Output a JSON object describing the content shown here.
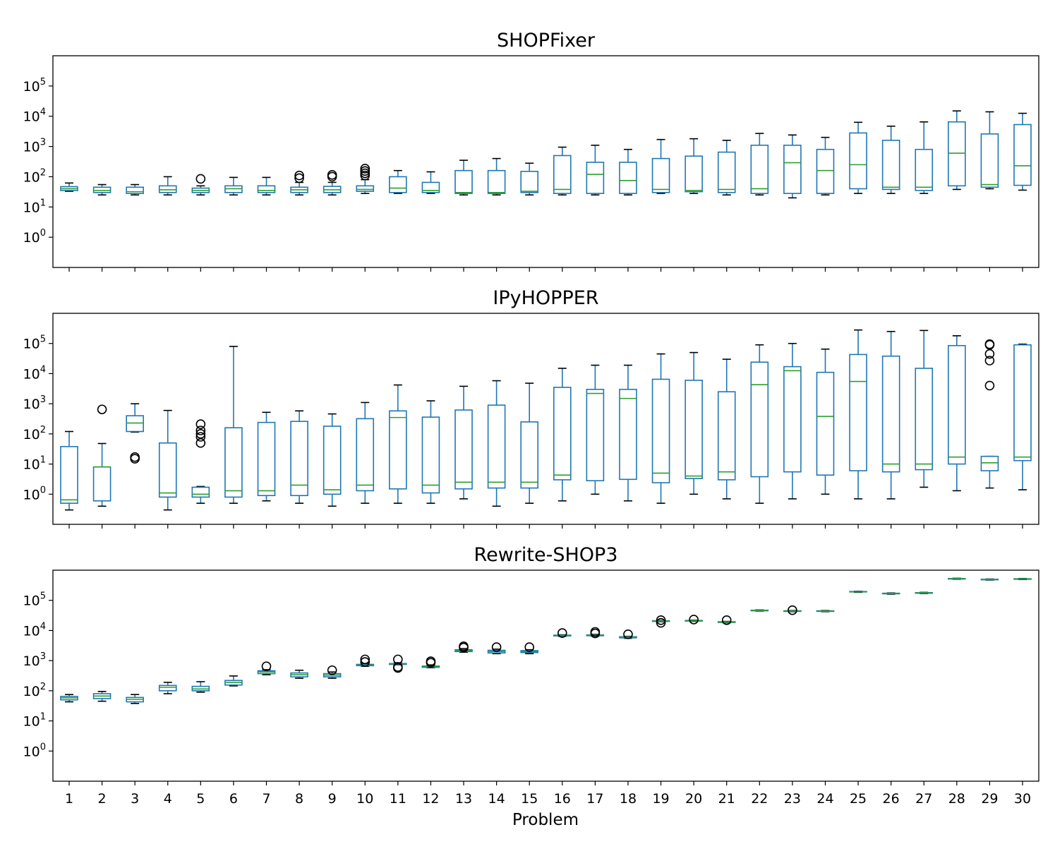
{
  "chart_data": {
    "type": "box",
    "xlabel": "Problem",
    "categories": [
      "1",
      "2",
      "3",
      "4",
      "5",
      "6",
      "7",
      "8",
      "9",
      "10",
      "11",
      "12",
      "13",
      "14",
      "15",
      "16",
      "17",
      "18",
      "19",
      "20",
      "21",
      "22",
      "23",
      "24",
      "25",
      "26",
      "27",
      "28",
      "29",
      "30"
    ],
    "yscale": "log",
    "ylim": [
      0.1,
      1000000
    ],
    "ytick_labels": [
      "10^0",
      "10^1",
      "10^2",
      "10^3",
      "10^4",
      "10^5"
    ],
    "grid": false,
    "colors": {
      "box": "#1f77b4",
      "median": "#2ca02c",
      "whisker": "#1f77b4",
      "cap": "#000000",
      "flier": "#000000"
    },
    "panels": [
      {
        "title": "SHOPFixer",
        "boxes": [
          {
            "whislo": 33,
            "q1": 35,
            "med": 40,
            "q3": 47,
            "whishi": 62,
            "fliers": []
          },
          {
            "whislo": 25,
            "q1": 30,
            "med": 35,
            "q3": 45,
            "whishi": 55,
            "fliers": []
          },
          {
            "whislo": 25,
            "q1": 28,
            "med": 32,
            "q3": 45,
            "whishi": 55,
            "fliers": []
          },
          {
            "whislo": 25,
            "q1": 30,
            "med": 37,
            "q3": 50,
            "whishi": 100,
            "fliers": []
          },
          {
            "whislo": 25,
            "q1": 30,
            "med": 35,
            "q3": 42,
            "whishi": 50,
            "fliers": [
              85
            ]
          },
          {
            "whislo": 25,
            "q1": 30,
            "med": 40,
            "q3": 50,
            "whishi": 95,
            "fliers": []
          },
          {
            "whislo": 25,
            "q1": 30,
            "med": 35,
            "q3": 50,
            "whishi": 95,
            "fliers": []
          },
          {
            "whislo": 25,
            "q1": 30,
            "med": 37,
            "q3": 45,
            "whishi": 65,
            "fliers": [
              90,
              110
            ]
          },
          {
            "whislo": 25,
            "q1": 30,
            "med": 37,
            "q3": 48,
            "whishi": 65,
            "fliers": [
              100,
              115
            ]
          },
          {
            "whislo": 28,
            "q1": 33,
            "med": 38,
            "q3": 50,
            "whishi": 80,
            "fliers": [
              110,
              130,
              155,
              185
            ]
          },
          {
            "whislo": 28,
            "q1": 30,
            "med": 42,
            "q3": 100,
            "whishi": 160,
            "fliers": []
          },
          {
            "whislo": 28,
            "q1": 30,
            "med": 35,
            "q3": 65,
            "whishi": 145,
            "fliers": []
          },
          {
            "whislo": 25,
            "q1": 28,
            "med": 30,
            "q3": 160,
            "whishi": 350,
            "fliers": []
          },
          {
            "whislo": 25,
            "q1": 28,
            "med": 30,
            "q3": 160,
            "whishi": 400,
            "fliers": []
          },
          {
            "whislo": 25,
            "q1": 30,
            "med": 33,
            "q3": 150,
            "whishi": 280,
            "fliers": []
          },
          {
            "whislo": 25,
            "q1": 28,
            "med": 38,
            "q3": 500,
            "whishi": 950,
            "fliers": []
          },
          {
            "whislo": 25,
            "q1": 28,
            "med": 120,
            "q3": 300,
            "whishi": 1100,
            "fliers": []
          },
          {
            "whislo": 25,
            "q1": 28,
            "med": 75,
            "q3": 300,
            "whishi": 800,
            "fliers": []
          },
          {
            "whislo": 28,
            "q1": 30,
            "med": 38,
            "q3": 400,
            "whishi": 1700,
            "fliers": []
          },
          {
            "whislo": 28,
            "q1": 32,
            "med": 35,
            "q3": 480,
            "whishi": 1800,
            "fliers": []
          },
          {
            "whislo": 25,
            "q1": 30,
            "med": 38,
            "q3": 650,
            "whishi": 1600,
            "fliers": []
          },
          {
            "whislo": 25,
            "q1": 28,
            "med": 40,
            "q3": 1100,
            "whishi": 2700,
            "fliers": []
          },
          {
            "whislo": 20,
            "q1": 28,
            "med": 290,
            "q3": 1100,
            "whishi": 2400,
            "fliers": []
          },
          {
            "whislo": 25,
            "q1": 28,
            "med": 160,
            "q3": 800,
            "whishi": 2000,
            "fliers": []
          },
          {
            "whislo": 28,
            "q1": 40,
            "med": 250,
            "q3": 2800,
            "whishi": 6300,
            "fliers": []
          },
          {
            "whislo": 28,
            "q1": 38,
            "med": 45,
            "q3": 1600,
            "whishi": 4700,
            "fliers": []
          },
          {
            "whislo": 28,
            "q1": 35,
            "med": 45,
            "q3": 800,
            "whishi": 6500,
            "fliers": []
          },
          {
            "whislo": 38,
            "q1": 50,
            "med": 600,
            "q3": 6500,
            "whishi": 15000,
            "fliers": []
          },
          {
            "whislo": 40,
            "q1": 45,
            "med": 55,
            "q3": 2600,
            "whishi": 14000,
            "fliers": []
          },
          {
            "whislo": 36,
            "q1": 52,
            "med": 230,
            "q3": 5300,
            "whishi": 12500,
            "fliers": []
          }
        ]
      },
      {
        "title": "IPyHOPPER",
        "boxes": [
          {
            "whislo": 0.3,
            "q1": 0.5,
            "med": 0.65,
            "q3": 38,
            "whishi": 120,
            "fliers": []
          },
          {
            "whislo": 0.4,
            "q1": 0.6,
            "med": 8,
            "q3": 8,
            "whishi": 48,
            "fliers": [
              650
            ]
          },
          {
            "whislo": 115,
            "q1": 120,
            "med": 230,
            "q3": 400,
            "whishi": 1000,
            "fliers": [
              15,
              17
            ]
          },
          {
            "whislo": 0.3,
            "q1": 0.8,
            "med": 1.1,
            "q3": 50,
            "whishi": 600,
            "fliers": []
          },
          {
            "whislo": 0.5,
            "q1": 0.8,
            "med": 1.0,
            "q3": 1.7,
            "whishi": 1.8,
            "fliers": [
              50,
              80,
              100,
              130,
              210
            ]
          },
          {
            "whislo": 0.5,
            "q1": 0.8,
            "med": 1.3,
            "q3": 160,
            "whishi": 80000,
            "fliers": []
          },
          {
            "whislo": 0.6,
            "q1": 0.9,
            "med": 1.3,
            "q3": 240,
            "whishi": 520,
            "fliers": []
          },
          {
            "whislo": 0.5,
            "q1": 0.9,
            "med": 2.0,
            "q3": 260,
            "whishi": 580,
            "fliers": []
          },
          {
            "whislo": 0.4,
            "q1": 1.0,
            "med": 1.4,
            "q3": 180,
            "whishi": 460,
            "fliers": []
          },
          {
            "whislo": 0.5,
            "q1": 1.3,
            "med": 2.0,
            "q3": 320,
            "whishi": 1100,
            "fliers": []
          },
          {
            "whislo": 0.5,
            "q1": 1.5,
            "med": 350,
            "q3": 580,
            "whishi": 4200,
            "fliers": []
          },
          {
            "whislo": 0.5,
            "q1": 1.1,
            "med": 2.0,
            "q3": 360,
            "whishi": 1250,
            "fliers": []
          },
          {
            "whislo": 0.7,
            "q1": 1.5,
            "med": 2.5,
            "q3": 620,
            "whishi": 3800,
            "fliers": []
          },
          {
            "whislo": 0.4,
            "q1": 1.6,
            "med": 2.5,
            "q3": 900,
            "whishi": 5800,
            "fliers": []
          },
          {
            "whislo": 0.5,
            "q1": 1.6,
            "med": 2.5,
            "q3": 250,
            "whishi": 4800,
            "fliers": []
          },
          {
            "whislo": 0.6,
            "q1": 3.0,
            "med": 4.3,
            "q3": 3500,
            "whishi": 15000,
            "fliers": []
          },
          {
            "whislo": 1.0,
            "q1": 2.8,
            "med": 2200,
            "q3": 3000,
            "whishi": 19000,
            "fliers": []
          },
          {
            "whislo": 0.6,
            "q1": 3.1,
            "med": 1500,
            "q3": 3000,
            "whishi": 19000,
            "fliers": []
          },
          {
            "whislo": 0.5,
            "q1": 2.4,
            "med": 5.0,
            "q3": 6500,
            "whishi": 45000,
            "fliers": []
          },
          {
            "whislo": 1.0,
            "q1": 3.3,
            "med": 4.0,
            "q3": 6000,
            "whishi": 50000,
            "fliers": []
          },
          {
            "whislo": 0.7,
            "q1": 3.0,
            "med": 5.5,
            "q3": 2500,
            "whishi": 30000,
            "fliers": []
          },
          {
            "whislo": 0.5,
            "q1": 3.8,
            "med": 4300,
            "q3": 24000,
            "whishi": 90000,
            "fliers": []
          },
          {
            "whislo": 0.7,
            "q1": 5.5,
            "med": 12500,
            "q3": 17000,
            "whishi": 100000,
            "fliers": []
          },
          {
            "whislo": 1.0,
            "q1": 4.3,
            "med": 380,
            "q3": 11000,
            "whishi": 65000,
            "fliers": []
          },
          {
            "whislo": 0.7,
            "q1": 6.0,
            "med": 5500,
            "q3": 43000,
            "whishi": 280000,
            "fliers": []
          },
          {
            "whislo": 0.7,
            "q1": 5.5,
            "med": 10,
            "q3": 38000,
            "whishi": 250000,
            "fliers": []
          },
          {
            "whislo": 1.7,
            "q1": 6.5,
            "med": 10,
            "q3": 15000,
            "whishi": 270000,
            "fliers": []
          },
          {
            "whislo": 1.3,
            "q1": 10,
            "med": 17,
            "q3": 85000,
            "whishi": 180000,
            "fliers": []
          },
          {
            "whislo": 1.6,
            "q1": 6.0,
            "med": 11,
            "q3": 18,
            "whishi": 18,
            "fliers": [
              4000,
              27000,
              45000,
              90000,
              95000
            ]
          },
          {
            "whislo": 1.4,
            "q1": 13,
            "med": 17,
            "q3": 90000,
            "whishi": 95000,
            "fliers": []
          }
        ]
      },
      {
        "title": "Rewrite-SHOP3",
        "boxes": [
          {
            "whislo": 43,
            "q1": 50,
            "med": 58,
            "q3": 65,
            "whishi": 75,
            "fliers": []
          },
          {
            "whislo": 45,
            "q1": 55,
            "med": 67,
            "q3": 80,
            "whishi": 95,
            "fliers": []
          },
          {
            "whislo": 38,
            "q1": 43,
            "med": 52,
            "q3": 60,
            "whishi": 75,
            "fliers": []
          },
          {
            "whislo": 80,
            "q1": 100,
            "med": 130,
            "q3": 150,
            "whishi": 190,
            "fliers": []
          },
          {
            "whislo": 90,
            "q1": 100,
            "med": 115,
            "q3": 140,
            "whishi": 200,
            "fliers": []
          },
          {
            "whislo": 145,
            "q1": 155,
            "med": 190,
            "q3": 220,
            "whishi": 310,
            "fliers": []
          },
          {
            "whislo": 340,
            "q1": 370,
            "med": 420,
            "q3": 460,
            "whishi": 500,
            "fliers": [
              650
            ]
          },
          {
            "whislo": 260,
            "q1": 290,
            "med": 340,
            "q3": 390,
            "whishi": 480,
            "fliers": []
          },
          {
            "whislo": 260,
            "q1": 290,
            "med": 330,
            "q3": 370,
            "whishi": 420,
            "fliers": [
              480
            ]
          },
          {
            "whislo": 650,
            "q1": 680,
            "med": 700,
            "q3": 750,
            "whishi": 800,
            "fliers": [
              900,
              1100
            ]
          },
          {
            "whislo": 730,
            "q1": 750,
            "med": 780,
            "q3": 800,
            "whishi": 850,
            "fliers": [
              570,
              620,
              1100
            ]
          },
          {
            "whislo": 580,
            "q1": 600,
            "med": 630,
            "q3": 660,
            "whishi": 720,
            "fliers": [
              850,
              950
            ]
          },
          {
            "whislo": 1900,
            "q1": 2000,
            "med": 2150,
            "q3": 2300,
            "whishi": 2500,
            "fliers": [
              2700,
              3000
            ]
          },
          {
            "whislo": 1700,
            "q1": 1800,
            "med": 2000,
            "q3": 2200,
            "whishi": 2400,
            "fliers": [
              2800
            ]
          },
          {
            "whislo": 1700,
            "q1": 1850,
            "med": 2000,
            "q3": 2150,
            "whishi": 2300,
            "fliers": [
              2800
            ]
          },
          {
            "whislo": 6400,
            "q1": 6600,
            "med": 6800,
            "q3": 7000,
            "whishi": 7200,
            "fliers": [
              8200
            ]
          },
          {
            "whislo": 6500,
            "q1": 6700,
            "med": 6900,
            "q3": 7100,
            "whishi": 7400,
            "fliers": [
              8000,
              9000
            ]
          },
          {
            "whislo": 5500,
            "q1": 5700,
            "med": 6000,
            "q3": 6200,
            "whishi": 6400,
            "fliers": [
              7500
            ]
          },
          {
            "whislo": 19500,
            "q1": 20000,
            "med": 20500,
            "q3": 21000,
            "whishi": 21500,
            "fliers": [
              18000,
              22000
            ]
          },
          {
            "whislo": 20000,
            "q1": 20500,
            "med": 21000,
            "q3": 21500,
            "whishi": 22000,
            "fliers": [
              23000
            ]
          },
          {
            "whislo": 18000,
            "q1": 18500,
            "med": 19000,
            "q3": 19500,
            "whishi": 20000,
            "fliers": [
              22000
            ]
          },
          {
            "whislo": 44000,
            "q1": 45000,
            "med": 46000,
            "q3": 47000,
            "whishi": 48000,
            "fliers": []
          },
          {
            "whislo": 42000,
            "q1": 43000,
            "med": 44000,
            "q3": 45000,
            "whishi": 46000,
            "fliers": [
              47000
            ]
          },
          {
            "whislo": 42000,
            "q1": 43000,
            "med": 44000,
            "q3": 45000,
            "whishi": 46000,
            "fliers": []
          },
          {
            "whislo": 185000,
            "q1": 190000,
            "med": 193000,
            "q3": 196000,
            "whishi": 200000,
            "fliers": []
          },
          {
            "whislo": 160000,
            "q1": 165000,
            "med": 168000,
            "q3": 172000,
            "whishi": 176000,
            "fliers": []
          },
          {
            "whislo": 168000,
            "q1": 172000,
            "med": 176000,
            "q3": 180000,
            "whishi": 184000,
            "fliers": []
          },
          {
            "whislo": 500000,
            "q1": 510000,
            "med": 520000,
            "q3": 530000,
            "whishi": 540000,
            "fliers": []
          },
          {
            "whislo": 470000,
            "q1": 480000,
            "med": 490000,
            "q3": 500000,
            "whishi": 510000,
            "fliers": []
          },
          {
            "whislo": 490000,
            "q1": 500000,
            "med": 510000,
            "q3": 520000,
            "whishi": 530000,
            "fliers": []
          }
        ]
      }
    ]
  }
}
